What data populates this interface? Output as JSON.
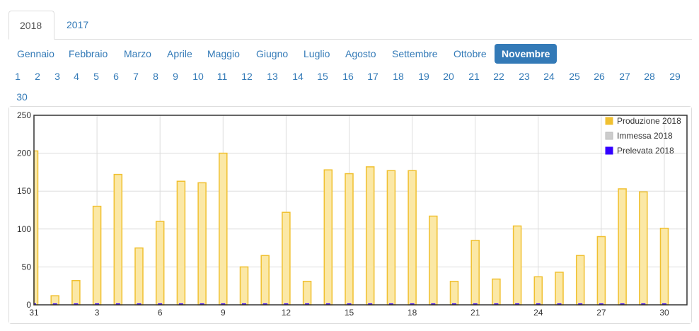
{
  "years": [
    {
      "label": "2018",
      "active": true
    },
    {
      "label": "2017",
      "active": false
    }
  ],
  "months": [
    {
      "label": "Gennaio",
      "active": false
    },
    {
      "label": "Febbraio",
      "active": false
    },
    {
      "label": "Marzo",
      "active": false
    },
    {
      "label": "Aprile",
      "active": false
    },
    {
      "label": "Maggio",
      "active": false
    },
    {
      "label": "Giugno",
      "active": false
    },
    {
      "label": "Luglio",
      "active": false
    },
    {
      "label": "Agosto",
      "active": false
    },
    {
      "label": "Settembre",
      "active": false
    },
    {
      "label": "Ottobre",
      "active": false
    },
    {
      "label": "Novembre",
      "active": true
    }
  ],
  "days": [
    "1",
    "2",
    "3",
    "4",
    "5",
    "6",
    "7",
    "8",
    "9",
    "10",
    "11",
    "12",
    "13",
    "14",
    "15",
    "16",
    "17",
    "18",
    "19",
    "20",
    "21",
    "22",
    "23",
    "24",
    "25",
    "26",
    "27",
    "28",
    "29",
    "30"
  ],
  "colors": {
    "link": "#337ab7",
    "produzione_fill": "#fbe8a6",
    "produzione_stroke": "#f0c030",
    "immessa": "#cccccc",
    "prelevata": "#3300ff"
  },
  "chart_data": {
    "type": "bar",
    "title": "",
    "xlabel": "",
    "ylabel": "",
    "ylim": [
      0,
      250
    ],
    "yticks": [
      0,
      50,
      100,
      150,
      200,
      250
    ],
    "x_tick_labels": [
      "31",
      "3",
      "6",
      "9",
      "12",
      "15",
      "18",
      "21",
      "24",
      "27",
      "30"
    ],
    "legend_position": "top-right",
    "grid": true,
    "categories": [
      "31",
      "1",
      "2",
      "3",
      "4",
      "5",
      "6",
      "7",
      "8",
      "9",
      "10",
      "11",
      "12",
      "13",
      "14",
      "15",
      "16",
      "17",
      "18",
      "19",
      "20",
      "21",
      "22",
      "23",
      "24",
      "25",
      "26",
      "27",
      "28",
      "29",
      "30"
    ],
    "series": [
      {
        "name": "Produzione 2018",
        "color": "#f0c030",
        "values": [
          203,
          12,
          32,
          130,
          172,
          75,
          110,
          163,
          161,
          200,
          50,
          65,
          122,
          31,
          178,
          173,
          182,
          177,
          177,
          117,
          31,
          85,
          34,
          104,
          37,
          43,
          65,
          90,
          153,
          149,
          101
        ]
      },
      {
        "name": "Immessa 2018",
        "color": "#cccccc",
        "values": [
          0,
          0,
          0,
          0,
          0,
          0,
          0,
          0,
          0,
          0,
          0,
          0,
          0,
          0,
          0,
          0,
          0,
          0,
          0,
          0,
          0,
          0,
          0,
          0,
          0,
          0,
          0,
          0,
          0,
          0,
          0
        ]
      },
      {
        "name": "Prelevata 2018",
        "color": "#3300ff",
        "values": [
          1,
          1,
          1,
          1,
          1,
          1,
          1,
          1,
          1,
          1,
          1,
          1,
          1,
          1,
          1,
          1,
          1,
          1,
          1,
          1,
          1,
          1,
          1,
          1,
          1,
          1,
          1,
          1,
          1,
          1,
          1
        ]
      }
    ]
  }
}
